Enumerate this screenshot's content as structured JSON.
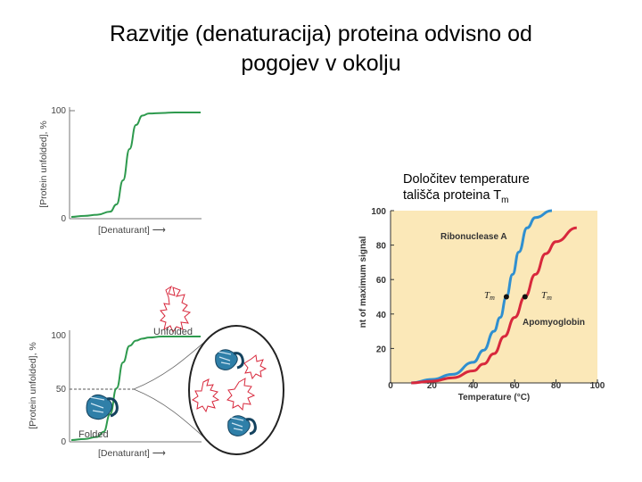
{
  "slide": {
    "title_line1": "Razvitje (denaturacija) proteina odvisno od",
    "title_line2": "pogojev v okolju",
    "note_line1": "Določitev temperature",
    "note_line2_prefix": "tališča proteina T",
    "note_line2_sub": "m"
  },
  "colors": {
    "green_curve": "#2e9a4e",
    "blue_curve": "#2f8fd0",
    "red_curve": "#d8283c",
    "chart_bg": "#fbe8b8",
    "protein_blue": "#2f7fa8",
    "chain_red": "#d8283c"
  },
  "chart_data": [
    {
      "type": "line",
      "ylabel": "[Protein unfolded], %",
      "xlabel": "[Denaturant] ⟶",
      "y_ticks": [
        "100",
        "0"
      ],
      "ylim": [
        0,
        100
      ],
      "series": [
        {
          "x": [
            0,
            0.1,
            0.2,
            0.3,
            0.35,
            0.4,
            0.45,
            0.5,
            0.55,
            0.6,
            0.7,
            0.8,
            0.9,
            1.0
          ],
          "values": [
            0,
            1,
            2,
            5,
            12,
            35,
            65,
            88,
            97,
            99,
            99.5,
            100,
            100,
            100
          ]
        }
      ]
    },
    {
      "type": "line",
      "ylabel": "[Protein unfolded], %",
      "xlabel": "[Denaturant] ⟶",
      "y_ticks": [
        "100",
        "50",
        "0"
      ],
      "ylim": [
        0,
        100
      ],
      "midpoint_value": 50,
      "unfolded_label": "Unfolded",
      "folded_label": "Folded",
      "series": [
        {
          "x": [
            0,
            0.1,
            0.2,
            0.25,
            0.3,
            0.35,
            0.4,
            0.45,
            0.5,
            0.55,
            0.6,
            0.7,
            0.8,
            0.9,
            1.0
          ],
          "values": [
            0,
            1,
            3,
            8,
            25,
            50,
            75,
            91,
            96,
            98,
            99,
            100,
            100,
            100,
            100
          ]
        }
      ]
    },
    {
      "type": "line",
      "xlabel": "Temperature (°C)",
      "ylabel": "nt of maximum signal",
      "x_ticks": [
        "0",
        "20",
        "40",
        "60",
        "80",
        "100"
      ],
      "y_ticks": [
        "20",
        "40",
        "60",
        "80",
        "100"
      ],
      "xlim": [
        0,
        100
      ],
      "ylim": [
        0,
        100
      ],
      "tm_label": "T",
      "tm_sub": "m",
      "series": [
        {
          "name": "Ribonuclease A",
          "x": [
            10,
            20,
            30,
            40,
            45,
            50,
            53,
            56,
            59,
            62,
            66,
            70,
            78
          ],
          "values": [
            0,
            2,
            5,
            12,
            19,
            30,
            38,
            50,
            63,
            76,
            90,
            96,
            100
          ],
          "tm": [
            56,
            50
          ]
        },
        {
          "name": "Apomyoglobin",
          "x": [
            10,
            20,
            30,
            40,
            45,
            50,
            55,
            60,
            65,
            70,
            75,
            80,
            90
          ],
          "values": [
            0,
            1,
            3,
            7,
            11,
            17,
            27,
            38,
            50,
            63,
            75,
            82,
            90
          ],
          "tm": [
            65,
            50
          ]
        }
      ]
    }
  ]
}
